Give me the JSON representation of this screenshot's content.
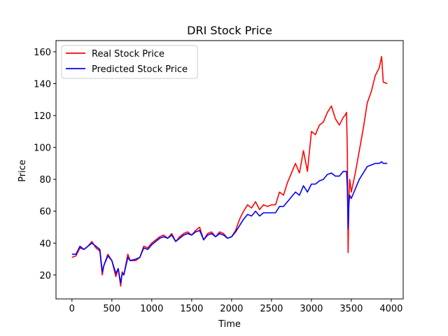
{
  "chart_data": {
    "type": "line",
    "title": "DRI Stock Price",
    "xlabel": "Time",
    "ylabel": "Price",
    "xlim": [
      -200,
      4150
    ],
    "ylim": [
      5,
      167
    ],
    "xticks": [
      0,
      500,
      1000,
      1500,
      2000,
      2500,
      3000,
      3500,
      4000
    ],
    "yticks": [
      20,
      40,
      60,
      80,
      100,
      120,
      140,
      160
    ],
    "grid": false,
    "legend_position": "upper-left",
    "series": [
      {
        "name": "Real Stock Price",
        "color": "#ff0000",
        "x": [
          0,
          50,
          100,
          150,
          200,
          250,
          300,
          350,
          380,
          400,
          450,
          500,
          550,
          580,
          610,
          630,
          650,
          700,
          730,
          800,
          850,
          900,
          950,
          1000,
          1050,
          1100,
          1150,
          1200,
          1250,
          1300,
          1350,
          1400,
          1450,
          1500,
          1550,
          1600,
          1650,
          1700,
          1750,
          1800,
          1850,
          1900,
          1950,
          2000,
          2050,
          2100,
          2150,
          2200,
          2250,
          2300,
          2350,
          2400,
          2450,
          2500,
          2550,
          2600,
          2650,
          2700,
          2750,
          2800,
          2850,
          2900,
          2950,
          3000,
          3050,
          3100,
          3150,
          3200,
          3250,
          3300,
          3350,
          3400,
          3420,
          3440,
          3450,
          3460,
          3470,
          3480,
          3500,
          3550,
          3600,
          3650,
          3700,
          3750,
          3800,
          3850,
          3880,
          3900,
          3950
        ],
        "y": [
          31,
          32,
          37,
          36,
          38,
          41,
          37,
          35,
          20,
          26,
          33,
          29,
          19,
          24,
          13,
          22,
          20,
          33,
          29,
          29,
          31,
          38,
          37,
          40,
          42,
          44,
          45,
          43,
          46,
          41,
          44,
          46,
          47,
          45,
          48,
          50,
          42,
          46,
          47,
          44,
          47,
          46,
          43,
          44,
          48,
          55,
          60,
          64,
          62,
          66,
          61,
          64,
          63,
          64,
          64,
          72,
          70,
          78,
          84,
          90,
          84,
          98,
          85,
          110,
          108,
          114,
          116,
          122,
          126,
          118,
          114,
          119,
          120,
          122,
          98,
          34,
          70,
          80,
          72,
          84,
          98,
          112,
          128,
          135,
          145,
          150,
          157,
          141,
          140
        ]
      },
      {
        "name": "Predicted Stock Price",
        "color": "#0000ff",
        "x": [
          0,
          50,
          100,
          150,
          200,
          250,
          300,
          350,
          380,
          400,
          450,
          500,
          550,
          580,
          610,
          630,
          650,
          700,
          730,
          800,
          850,
          900,
          950,
          1000,
          1050,
          1100,
          1150,
          1200,
          1250,
          1300,
          1350,
          1400,
          1450,
          1500,
          1550,
          1600,
          1650,
          1700,
          1750,
          1800,
          1850,
          1900,
          1950,
          2000,
          2050,
          2100,
          2150,
          2200,
          2250,
          2300,
          2350,
          2400,
          2450,
          2500,
          2550,
          2600,
          2650,
          2700,
          2750,
          2800,
          2850,
          2900,
          2950,
          3000,
          3050,
          3100,
          3150,
          3200,
          3250,
          3300,
          3350,
          3400,
          3420,
          3440,
          3450,
          3460,
          3470,
          3480,
          3500,
          3550,
          3600,
          3650,
          3700,
          3750,
          3800,
          3850,
          3880,
          3900,
          3950
        ],
        "y": [
          33,
          33,
          38,
          36,
          38,
          40,
          38,
          36,
          22,
          26,
          32,
          29,
          21,
          24,
          15,
          21,
          20,
          31,
          29,
          30,
          31,
          37,
          36,
          39,
          41,
          43,
          44,
          43,
          45,
          41,
          43,
          45,
          46,
          45,
          47,
          48,
          42,
          45,
          46,
          44,
          46,
          45,
          43,
          44,
          47,
          51,
          55,
          58,
          57,
          60,
          57,
          59,
          59,
          59,
          59,
          63,
          63,
          66,
          69,
          72,
          70,
          76,
          72,
          77,
          77,
          79,
          80,
          83,
          84,
          82,
          82,
          85,
          85,
          85,
          75,
          49,
          65,
          70,
          68,
          74,
          80,
          84,
          88,
          89,
          90,
          90,
          91,
          90,
          90
        ]
      }
    ]
  }
}
